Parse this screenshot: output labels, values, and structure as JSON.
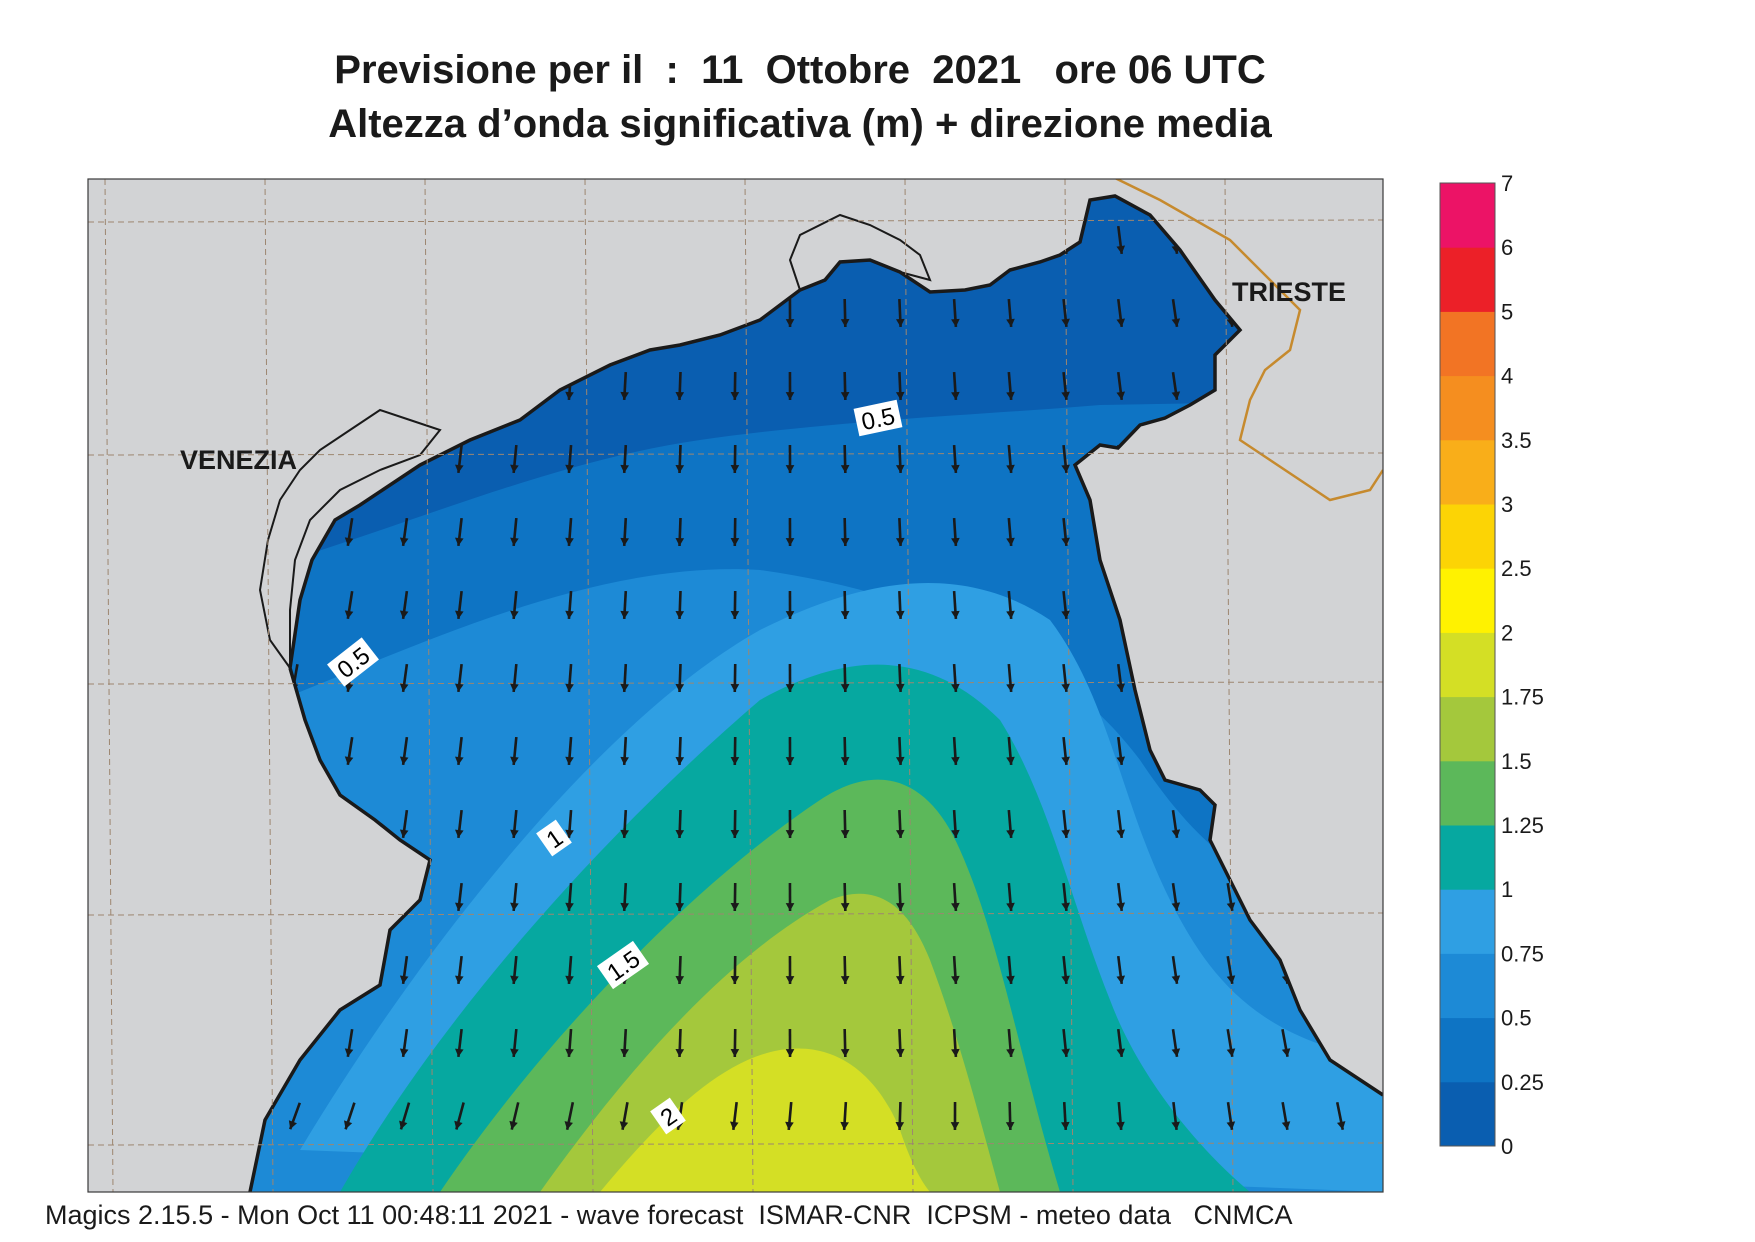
{
  "title": {
    "line1": "Previsione per il  :  11  Ottobre  2021   ore 06 UTC",
    "line2": "Altezza d’onda significativa (m) + direzione media"
  },
  "places": {
    "venezia": "VENEZIA",
    "trieste": "TRIESTE"
  },
  "contour_labels": [
    "0.5",
    "0.5",
    "1",
    "1.5",
    "2"
  ],
  "colorbar": {
    "levels": [
      "0",
      "0.25",
      "0.5",
      "0.75",
      "1",
      "1.25",
      "1.5",
      "1.75",
      "2",
      "2.5",
      "3",
      "3.5",
      "4",
      "5",
      "6",
      "7"
    ],
    "colors": [
      "#0a5eb0",
      "#0e74c4",
      "#1d8ad6",
      "#2f9fe3",
      "#06a8a0",
      "#5cb85a",
      "#a4c83c",
      "#d4df25",
      "#fff200",
      "#fcd405",
      "#f9ae19",
      "#f58e1f",
      "#f27424",
      "#ec2028",
      "#ec1366"
    ]
  },
  "colors": {
    "land": "#d2d3d5",
    "border": "#c68a2e",
    "grid": "#9d8670",
    "arrow": "#1a1a1a"
  },
  "footer": "Magics 2.15.5 - Mon Oct 11 00:48:11 2021 - wave forecast  ISMAR-CNR  ICPSM - meteo data   CNMCA"
}
